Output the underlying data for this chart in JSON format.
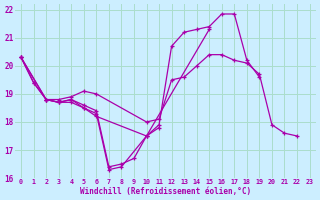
{
  "xlabel": "Windchill (Refroidissement éolien,°C)",
  "background_color": "#cceeff",
  "grid_color": "#aaddcc",
  "line_color": "#aa00aa",
  "xlim": [
    -0.5,
    23.5
  ],
  "ylim": [
    16,
    22.2
  ],
  "xticks": [
    0,
    1,
    2,
    3,
    4,
    5,
    6,
    7,
    8,
    9,
    10,
    11,
    12,
    13,
    14,
    15,
    16,
    17,
    18,
    19,
    20,
    21,
    22,
    23
  ],
  "yticks": [
    16,
    17,
    18,
    19,
    20,
    21,
    22
  ],
  "series": [
    [
      [
        0,
        20.3
      ],
      [
        1,
        19.4
      ],
      [
        2,
        18.8
      ],
      [
        3,
        18.7
      ],
      [
        4,
        18.8
      ],
      [
        5,
        18.6
      ],
      [
        6,
        18.4
      ],
      [
        7,
        16.4
      ],
      [
        8,
        16.5
      ],
      [
        9,
        16.7
      ],
      [
        10,
        17.5
      ],
      [
        11,
        17.9
      ],
      [
        12,
        20.7
      ],
      [
        13,
        21.2
      ],
      [
        14,
        21.3
      ],
      [
        15,
        21.4
      ],
      [
        16,
        21.85
      ],
      [
        17,
        21.85
      ],
      [
        18,
        20.2
      ],
      [
        19,
        19.6
      ]
    ],
    [
      [
        0,
        20.3
      ],
      [
        1,
        19.4
      ],
      [
        2,
        18.8
      ],
      [
        3,
        18.7
      ],
      [
        4,
        18.8
      ],
      [
        5,
        18.5
      ],
      [
        6,
        18.3
      ],
      [
        7,
        16.3
      ],
      [
        8,
        16.4
      ],
      [
        10,
        17.5
      ],
      [
        11,
        17.8
      ]
    ],
    [
      [
        0,
        20.3
      ],
      [
        2,
        18.8
      ],
      [
        3,
        18.7
      ],
      [
        4,
        18.7
      ],
      [
        5,
        18.5
      ],
      [
        6,
        18.2
      ],
      [
        10,
        17.5
      ],
      [
        15,
        21.3
      ]
    ],
    [
      [
        0,
        20.3
      ],
      [
        2,
        18.8
      ],
      [
        3,
        18.8
      ],
      [
        4,
        18.9
      ],
      [
        5,
        19.1
      ],
      [
        6,
        19.0
      ],
      [
        10,
        18.0
      ],
      [
        11,
        18.1
      ],
      [
        12,
        19.5
      ],
      [
        13,
        19.6
      ],
      [
        14,
        20.0
      ],
      [
        15,
        20.4
      ],
      [
        16,
        20.4
      ],
      [
        17,
        20.2
      ],
      [
        18,
        20.1
      ],
      [
        19,
        19.7
      ],
      [
        20,
        17.9
      ],
      [
        21,
        17.6
      ],
      [
        22,
        17.5
      ]
    ]
  ]
}
